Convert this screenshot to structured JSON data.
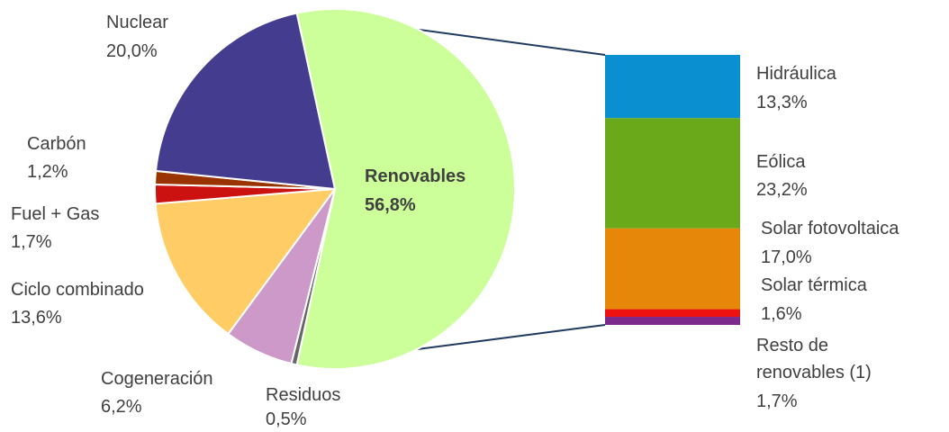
{
  "chart_data": {
    "type": "pie",
    "title": "",
    "pie": {
      "slices": [
        {
          "label": "Renovables",
          "value": 56.8,
          "value_label": "56,8%",
          "color": "#ccff99"
        },
        {
          "label": "Residuos",
          "value": 0.5,
          "value_label": "0,5%",
          "color": "#666666"
        },
        {
          "label": "Cogeneración",
          "value": 6.2,
          "value_label": "6,2%",
          "color": "#cc99c8"
        },
        {
          "label": "Ciclo combinado",
          "value": 13.6,
          "value_label": "13,6%",
          "color": "#ffcc66"
        },
        {
          "label": "Fuel + Gas",
          "value": 1.7,
          "value_label": "1,7%",
          "color": "#cc1111"
        },
        {
          "label": "Carbón",
          "value": 1.2,
          "value_label": "1,2%",
          "color": "#993300"
        },
        {
          "label": "Nuclear",
          "value": 20.0,
          "value_label": "20,0%",
          "color": "#443d8f"
        }
      ]
    },
    "breakdown": {
      "of": "Renovables",
      "type": "stacked-bar",
      "segments": [
        {
          "label": "Hidráulica",
          "value": 13.3,
          "value_label": "13,3%",
          "color": "#0a8fd0"
        },
        {
          "label": "Eólica",
          "value": 23.2,
          "value_label": "23,2%",
          "color": "#6aaa1a"
        },
        {
          "label": "Solar fotovoltaica",
          "value": 17.0,
          "value_label": "17,0%",
          "color": "#e6870a"
        },
        {
          "label": "Solar térmica",
          "value": 1.6,
          "value_label": "1,6%",
          "color": "#ee1111"
        },
        {
          "label": "Resto de renovables (1)",
          "label_lines": [
            "Resto de",
            "renovables (1)"
          ],
          "value": 1.7,
          "value_label": "1,7%",
          "color": "#7b2a8c"
        }
      ]
    }
  }
}
